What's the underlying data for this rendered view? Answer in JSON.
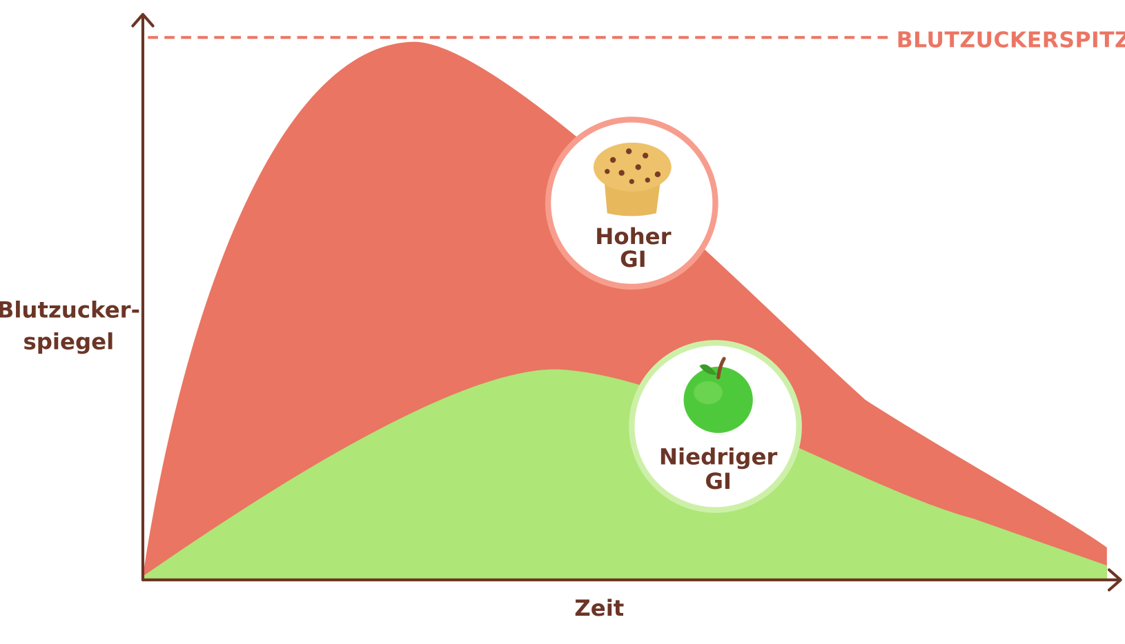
{
  "peak_label": "BLUTZUCKERSPITZE",
  "y_axis_label": {
    "lines": [
      "Blutzucker-",
      "spiegel"
    ]
  },
  "x_axis_label": "Zeit",
  "markers": [
    {
      "label": {
        "lines": [
          "Hoher",
          "GI"
        ]
      }
    },
    {
      "label": {
        "lines": [
          "Niedriger",
          "GI"
        ]
      }
    }
  ]
}
